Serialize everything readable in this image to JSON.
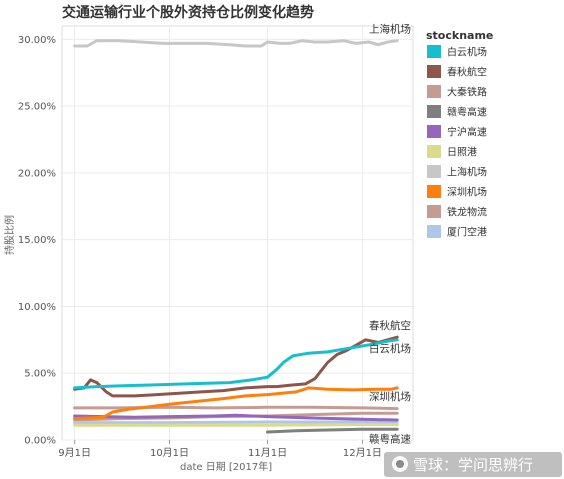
{
  "chart_data": {
    "type": "line",
    "title": "交通运输行业个股外资持仓比例变化趋势",
    "xlabel": "date 日期 [2017年]",
    "ylabel": "持股比例",
    "ylim": [
      0,
      31
    ],
    "xlim": [
      "2017-08-28",
      "2017-12-17"
    ],
    "y_ticks": [
      {
        "value": 0,
        "label": "0.00%"
      },
      {
        "value": 5,
        "label": "5.00%"
      },
      {
        "value": 10,
        "label": "10.00%"
      },
      {
        "value": 15,
        "label": "15.00%"
      },
      {
        "value": 20,
        "label": "20.00%"
      },
      {
        "value": 25,
        "label": "25.00%"
      },
      {
        "value": 30,
        "label": "30.00%"
      }
    ],
    "x_ticks": [
      {
        "value": "2017-09-01",
        "label": "9月1日"
      },
      {
        "value": "2017-10-01",
        "label": "10月1日"
      },
      {
        "value": "2017-11-01",
        "label": "11月1日"
      },
      {
        "value": "2017-12-01",
        "label": "12月1日"
      }
    ],
    "grid": true,
    "legend": {
      "title": "stockname",
      "position": "right"
    },
    "series": [
      {
        "name": "白云机场",
        "color": "#17becf",
        "end_label": "白云机场",
        "points": [
          [
            "2017-09-01",
            3.9
          ],
          [
            "2017-09-08",
            4.0
          ],
          [
            "2017-09-15",
            4.05
          ],
          [
            "2017-09-22",
            4.1
          ],
          [
            "2017-09-29",
            4.15
          ],
          [
            "2017-10-06",
            4.2
          ],
          [
            "2017-10-13",
            4.25
          ],
          [
            "2017-10-20",
            4.3
          ],
          [
            "2017-10-27",
            4.5
          ],
          [
            "2017-11-01",
            4.7
          ],
          [
            "2017-11-04",
            5.3
          ],
          [
            "2017-11-06",
            5.8
          ],
          [
            "2017-11-09",
            6.3
          ],
          [
            "2017-11-14",
            6.5
          ],
          [
            "2017-11-20",
            6.6
          ],
          [
            "2017-11-25",
            6.8
          ],
          [
            "2017-11-30",
            7.0
          ],
          [
            "2017-12-05",
            7.2
          ],
          [
            "2017-12-09",
            7.4
          ],
          [
            "2017-12-12",
            7.5
          ]
        ]
      },
      {
        "name": "春秋航空",
        "color": "#8c564b",
        "end_label": "春秋航空",
        "points": [
          [
            "2017-09-01",
            3.8
          ],
          [
            "2017-09-04",
            3.9
          ],
          [
            "2017-09-06",
            4.5
          ],
          [
            "2017-09-08",
            4.3
          ],
          [
            "2017-09-11",
            3.6
          ],
          [
            "2017-09-13",
            3.3
          ],
          [
            "2017-09-20",
            3.3
          ],
          [
            "2017-09-27",
            3.4
          ],
          [
            "2017-10-04",
            3.5
          ],
          [
            "2017-10-11",
            3.6
          ],
          [
            "2017-10-18",
            3.7
          ],
          [
            "2017-10-25",
            3.9
          ],
          [
            "2017-11-01",
            4.0
          ],
          [
            "2017-11-04",
            4.0
          ],
          [
            "2017-11-08",
            4.1
          ],
          [
            "2017-11-13",
            4.2
          ],
          [
            "2017-11-16",
            4.6
          ],
          [
            "2017-11-20",
            5.8
          ],
          [
            "2017-11-23",
            6.4
          ],
          [
            "2017-11-26",
            6.7
          ],
          [
            "2017-11-29",
            7.1
          ],
          [
            "2017-12-02",
            7.5
          ],
          [
            "2017-12-06",
            7.3
          ],
          [
            "2017-12-09",
            7.5
          ],
          [
            "2017-12-12",
            7.7
          ]
        ]
      },
      {
        "name": "大秦铁路",
        "color": "#c49c94",
        "points": [
          [
            "2017-09-01",
            2.4
          ],
          [
            "2017-09-15",
            2.4
          ],
          [
            "2017-10-01",
            2.45
          ],
          [
            "2017-10-15",
            2.4
          ],
          [
            "2017-11-01",
            2.45
          ],
          [
            "2017-11-15",
            2.45
          ],
          [
            "2017-12-01",
            2.4
          ],
          [
            "2017-12-12",
            2.35
          ]
        ]
      },
      {
        "name": "赣粤高速",
        "color": "#7f7f7f",
        "end_label": "赣粤高速",
        "points": [
          [
            "2017-11-01",
            0.6
          ],
          [
            "2017-11-10",
            0.7
          ],
          [
            "2017-11-20",
            0.75
          ],
          [
            "2017-12-01",
            0.8
          ],
          [
            "2017-12-12",
            0.8
          ]
        ]
      },
      {
        "name": "宁沪高速",
        "color": "#9467bd",
        "points": [
          [
            "2017-09-01",
            1.8
          ],
          [
            "2017-09-10",
            1.75
          ],
          [
            "2017-09-20",
            1.7
          ],
          [
            "2017-10-01",
            1.75
          ],
          [
            "2017-10-15",
            1.8
          ],
          [
            "2017-10-22",
            1.85
          ],
          [
            "2017-11-01",
            1.75
          ],
          [
            "2017-11-15",
            1.65
          ],
          [
            "2017-12-01",
            1.55
          ],
          [
            "2017-12-12",
            1.5
          ]
        ]
      },
      {
        "name": "日照港",
        "color": "#dbdb8d",
        "points": [
          [
            "2017-09-01",
            1.1
          ],
          [
            "2017-10-01",
            1.1
          ],
          [
            "2017-11-01",
            1.1
          ],
          [
            "2017-12-01",
            1.15
          ],
          [
            "2017-12-12",
            1.15
          ]
        ]
      },
      {
        "name": "上海机场",
        "color": "#c7c7c7",
        "end_label": "上海机场",
        "points": [
          [
            "2017-09-01",
            29.5
          ],
          [
            "2017-09-05",
            29.5
          ],
          [
            "2017-09-08",
            29.9
          ],
          [
            "2017-09-15",
            29.9
          ],
          [
            "2017-09-22",
            29.8
          ],
          [
            "2017-09-29",
            29.7
          ],
          [
            "2017-10-06",
            29.7
          ],
          [
            "2017-10-13",
            29.7
          ],
          [
            "2017-10-20",
            29.6
          ],
          [
            "2017-10-25",
            29.5
          ],
          [
            "2017-10-30",
            29.5
          ],
          [
            "2017-11-01",
            29.8
          ],
          [
            "2017-11-05",
            29.7
          ],
          [
            "2017-11-08",
            29.7
          ],
          [
            "2017-11-12",
            29.9
          ],
          [
            "2017-11-16",
            29.8
          ],
          [
            "2017-11-20",
            29.8
          ],
          [
            "2017-11-25",
            29.9
          ],
          [
            "2017-11-29",
            29.7
          ],
          [
            "2017-12-03",
            29.8
          ],
          [
            "2017-12-06",
            29.6
          ],
          [
            "2017-12-09",
            29.8
          ],
          [
            "2017-12-12",
            29.9
          ]
        ]
      },
      {
        "name": "深圳机场",
        "color": "#ff7f0e",
        "end_label": "深圳机场",
        "points": [
          [
            "2017-09-01",
            1.6
          ],
          [
            "2017-09-10",
            1.7
          ],
          [
            "2017-09-13",
            2.1
          ],
          [
            "2017-09-18",
            2.3
          ],
          [
            "2017-09-25",
            2.5
          ],
          [
            "2017-10-02",
            2.7
          ],
          [
            "2017-10-10",
            2.9
          ],
          [
            "2017-10-18",
            3.1
          ],
          [
            "2017-10-25",
            3.3
          ],
          [
            "2017-11-01",
            3.4
          ],
          [
            "2017-11-10",
            3.6
          ],
          [
            "2017-11-14",
            3.9
          ],
          [
            "2017-11-20",
            3.8
          ],
          [
            "2017-11-28",
            3.75
          ],
          [
            "2017-12-05",
            3.8
          ],
          [
            "2017-12-10",
            3.8
          ],
          [
            "2017-12-12",
            3.9
          ]
        ]
      },
      {
        "name": "铁龙物流",
        "color": "#c49c94",
        "points": [
          [
            "2017-09-01",
            1.5
          ],
          [
            "2017-09-15",
            1.6
          ],
          [
            "2017-10-01",
            1.65
          ],
          [
            "2017-10-15",
            1.75
          ],
          [
            "2017-11-01",
            1.8
          ],
          [
            "2017-11-15",
            1.9
          ],
          [
            "2017-12-01",
            2.0
          ],
          [
            "2017-12-12",
            2.0
          ]
        ]
      },
      {
        "name": "厦门空港",
        "color": "#aec7e8",
        "points": [
          [
            "2017-09-01",
            1.3
          ],
          [
            "2017-10-01",
            1.3
          ],
          [
            "2017-11-01",
            1.35
          ],
          [
            "2017-12-01",
            1.35
          ],
          [
            "2017-12-12",
            1.3
          ]
        ]
      }
    ]
  },
  "watermark": {
    "text": "雪球：学问思辨行"
  }
}
